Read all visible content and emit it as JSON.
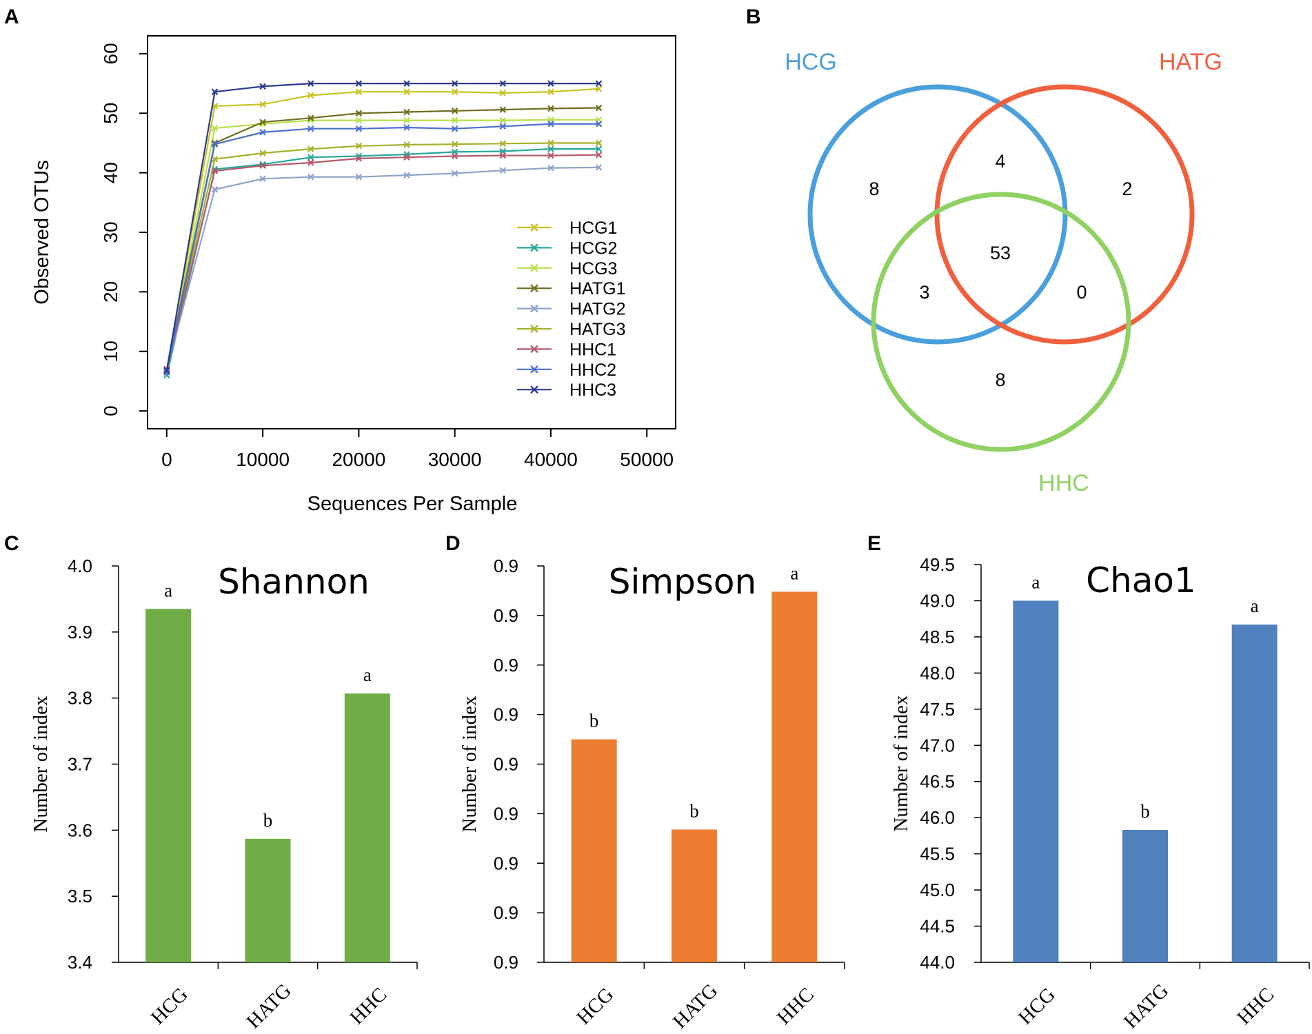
{
  "panels": {
    "A": "A",
    "B": "B",
    "C": "C",
    "D": "D",
    "E": "E"
  },
  "chart_data": [
    {
      "id": "A",
      "type": "line",
      "title": "",
      "xlabel": "Sequences Per Sample",
      "ylabel": "Observed OTUs",
      "xlim": [
        -2000,
        53000
      ],
      "ylim": [
        -3,
        63
      ],
      "xticks": [
        0,
        10000,
        20000,
        30000,
        40000,
        50000
      ],
      "yticks": [
        0,
        10,
        20,
        30,
        40,
        50,
        60
      ],
      "x": [
        0,
        5000,
        10000,
        15000,
        20000,
        25000,
        30000,
        35000,
        40000,
        45000
      ],
      "series": [
        {
          "name": "HCG1",
          "color": "#c8c21e",
          "values": [
            7,
            51.2,
            51.5,
            53,
            53.6,
            53.6,
            53.6,
            53.4,
            53.6,
            54.1
          ]
        },
        {
          "name": "HCG2",
          "color": "#27a899",
          "values": [
            6,
            40.6,
            41.4,
            42.6,
            42.8,
            43.1,
            43.5,
            43.6,
            44,
            44
          ]
        },
        {
          "name": "HCG3",
          "color": "#b7e04a",
          "values": [
            7,
            47.5,
            48.2,
            48.8,
            48.8,
            48.8,
            48.8,
            48.8,
            48.9,
            48.9
          ]
        },
        {
          "name": "HATG1",
          "color": "#6f6d1e",
          "values": [
            7,
            45,
            48.5,
            49.2,
            50,
            50.2,
            50.4,
            50.6,
            50.8,
            50.9
          ]
        },
        {
          "name": "HATG2",
          "color": "#8fa3c8",
          "values": [
            7,
            37.2,
            39,
            39.3,
            39.3,
            39.6,
            39.9,
            40.4,
            40.8,
            40.9
          ]
        },
        {
          "name": "HATG3",
          "color": "#a6b12c",
          "values": [
            7,
            42.3,
            43.3,
            44,
            44.5,
            44.7,
            44.8,
            44.9,
            45,
            45
          ]
        },
        {
          "name": "HHC1",
          "color": "#b65a6a",
          "values": [
            7,
            40.3,
            41.2,
            41.7,
            42.4,
            42.6,
            42.8,
            42.9,
            42.9,
            43
          ]
        },
        {
          "name": "HHC2",
          "color": "#4c6fd0",
          "values": [
            6.5,
            44.8,
            46.8,
            47.4,
            47.4,
            47.6,
            47.4,
            47.8,
            48.2,
            48.2
          ]
        },
        {
          "name": "HHC3",
          "color": "#2a3a8f",
          "values": [
            6.8,
            53.6,
            54.5,
            55,
            55,
            55,
            55,
            55,
            55,
            55
          ]
        }
      ]
    },
    {
      "id": "B",
      "type": "venn",
      "sets": [
        {
          "name": "HCG",
          "color": "#4a9fdc"
        },
        {
          "name": "HATG",
          "color": "#f0603e"
        },
        {
          "name": "HHC",
          "color": "#8fd162"
        }
      ],
      "regions": {
        "HCG_only": "8",
        "HATG_only": "2",
        "HHC_only": "8",
        "HCG_HATG": "4",
        "HCG_HHC": "3",
        "HATG_HHC": "0",
        "all": "53"
      }
    },
    {
      "id": "C",
      "type": "bar",
      "title": "Shannon",
      "xlabel": "",
      "ylabel": "Number of index",
      "ylim": [
        3.4,
        4.0
      ],
      "yticks": [
        "3.4",
        "3.5",
        "3.6",
        "3.7",
        "3.8",
        "3.9",
        "4.0"
      ],
      "categories": [
        "HCG",
        "HATG",
        "HHC"
      ],
      "values": [
        3.935,
        3.587,
        3.807
      ],
      "labels": [
        "a",
        "b",
        "a"
      ],
      "color": "#70ad47"
    },
    {
      "id": "D",
      "type": "bar",
      "title": "Simpson",
      "xlabel": "",
      "ylabel": "Number of index",
      "ylim": [
        0,
        8
      ],
      "yticks": [
        "0.9",
        "0.9",
        "0.9",
        "0.9",
        "0.9",
        "0.9",
        "0.9",
        "0.9",
        "0.9"
      ],
      "categories": [
        "HCG",
        "HATG",
        "HHC"
      ],
      "values": [
        4.5,
        2.68,
        7.48
      ],
      "labels": [
        "b",
        "b",
        "a"
      ],
      "color": "#ed7d31"
    },
    {
      "id": "E",
      "type": "bar",
      "title": "Chao1",
      "xlabel": "",
      "ylabel": "Number of index",
      "ylim": [
        44.0,
        49.5
      ],
      "yticks": [
        "44.0",
        "44.5",
        "45.0",
        "45.5",
        "46.0",
        "46.5",
        "47.0",
        "47.5",
        "48.0",
        "48.5",
        "49.0",
        "49.5"
      ],
      "categories": [
        "HCG",
        "HATG",
        "HHC"
      ],
      "values": [
        49.0,
        45.83,
        48.67
      ],
      "labels": [
        "a",
        "b",
        "a"
      ],
      "color": "#4f81bd"
    }
  ]
}
